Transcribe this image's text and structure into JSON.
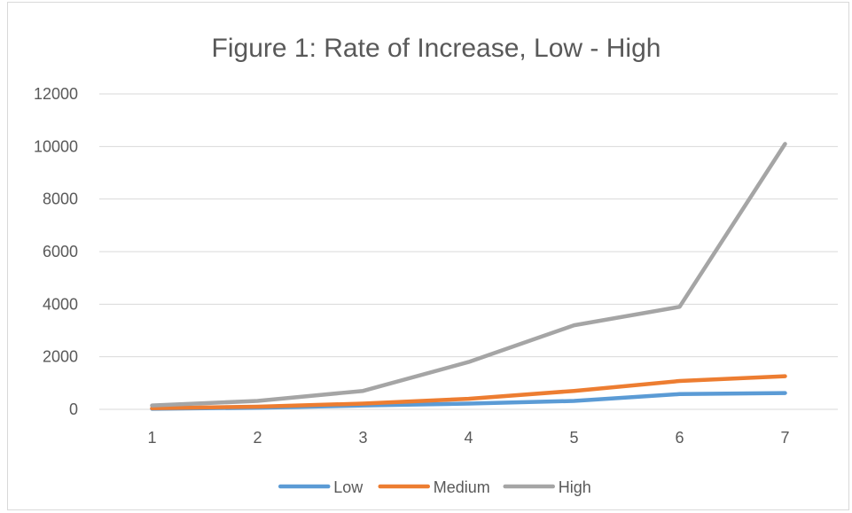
{
  "chart_data": {
    "type": "line",
    "title": "Figure 1: Rate of Increase, Low - High",
    "xlabel": "",
    "ylabel": "",
    "categories": [
      "1",
      "2",
      "3",
      "4",
      "5",
      "6",
      "7"
    ],
    "ylim": [
      0,
      12000
    ],
    "yticks": [
      0,
      2000,
      4000,
      6000,
      8000,
      10000,
      12000
    ],
    "ytick_labels": [
      "0",
      "2000",
      "4000",
      "6000",
      "8000",
      "10000",
      "12000"
    ],
    "grid": true,
    "legend_position": "bottom",
    "series": [
      {
        "name": "Low",
        "color": "#5b9bd5",
        "values": [
          20,
          60,
          150,
          220,
          320,
          580,
          620
        ]
      },
      {
        "name": "Medium",
        "color": "#ed7d31",
        "values": [
          40,
          100,
          220,
          400,
          700,
          1080,
          1260
        ]
      },
      {
        "name": "High",
        "color": "#a5a5a5",
        "values": [
          150,
          320,
          700,
          1800,
          3200,
          3900,
          10100
        ]
      }
    ]
  }
}
